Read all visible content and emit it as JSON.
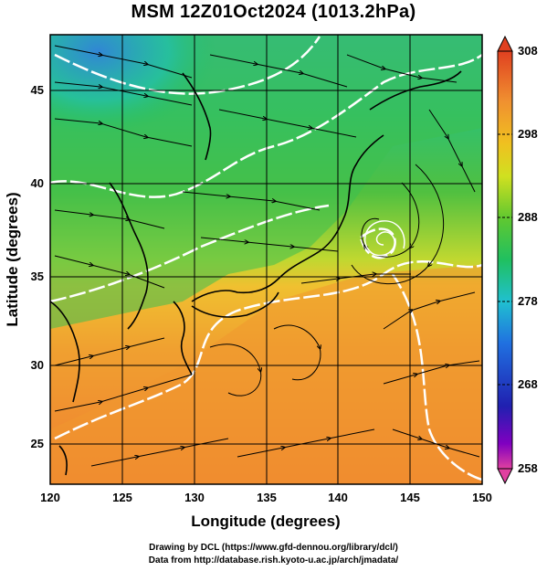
{
  "title": "MSM 12Z01Oct2024 (1013.2hPa)",
  "map": {
    "x_axis_label": "Longitude (degrees)",
    "y_axis_label": "Latitude  (degrees)",
    "lon_range": [
      120,
      150
    ],
    "lat_range": [
      22.4,
      47.6
    ],
    "lon_ticks": [
      "120",
      "125",
      "130",
      "135",
      "140",
      "145",
      "150"
    ],
    "lat_ticks": [
      "25",
      "30",
      "35",
      "40",
      "45"
    ],
    "grid": true,
    "background_field": "temperature (K), shaded",
    "overlay": "streamlines with arrows, white contour lines, black coastlines"
  },
  "colorbar": {
    "labels": [
      "308",
      "298",
      "288",
      "278",
      "268",
      "258"
    ],
    "min": 258,
    "max": 308,
    "colors": [
      "#e04080",
      "#8000c0",
      "#2020c0",
      "#2060e0",
      "#20a0e0",
      "#20d0c0",
      "#20c060",
      "#40c040",
      "#90d020",
      "#e0e020",
      "#f0c020",
      "#f0a030",
      "#f08030",
      "#e04020"
    ]
  },
  "credits": {
    "line1": "Drawing by DCL (https://www.gfd-dennou.org/library/dcl/)",
    "line2": "Data from http://database.rish.kyoto-u.ac.jp/arch/jmadata/"
  }
}
